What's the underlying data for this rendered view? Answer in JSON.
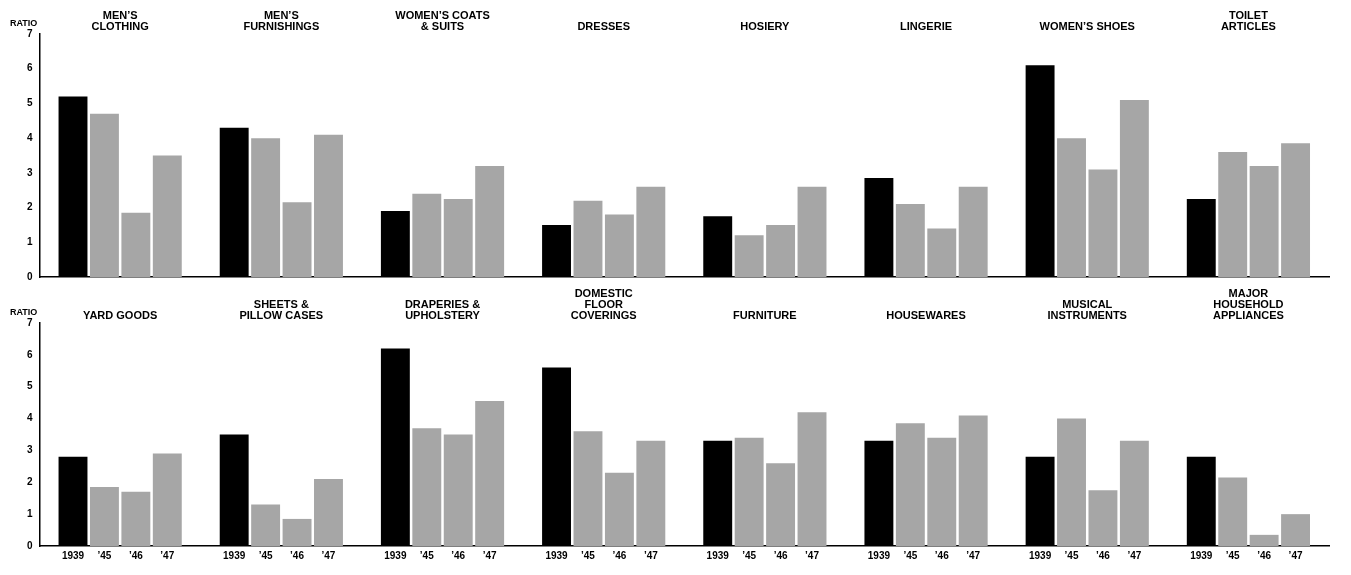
{
  "chart_data": [
    {
      "type": "bar",
      "ylabel": "RATIO",
      "categories": [
        "MEN’S CLOTHING",
        "MEN’S FURNISHINGS",
        "WOMEN’S COATS & SUITS",
        "DRESSES",
        "HOSIERY",
        "LINGERIE",
        "WOMEN’S SHOES",
        "TOILET ARTICLES"
      ],
      "ylim": [
        0,
        7
      ],
      "yticks": [
        0,
        1,
        2,
        3,
        4,
        5,
        6,
        7
      ],
      "grid": false,
      "series": [
        {
          "color": "#000000",
          "values": [
            5.2,
            4.3,
            1.9,
            1.5,
            1.75,
            2.85,
            6.1,
            2.25
          ]
        },
        {
          "color": "#a6a6a6",
          "values": [
            4.7,
            4.0,
            2.4,
            2.2,
            1.2,
            2.1,
            4.0,
            3.6
          ]
        },
        {
          "color": "#a6a6a6",
          "values": [
            1.85,
            2.15,
            2.25,
            1.8,
            1.5,
            1.4,
            3.1,
            3.2
          ]
        },
        {
          "color": "#a6a6a6",
          "values": [
            3.5,
            4.1,
            3.2,
            2.6,
            2.6,
            2.6,
            5.1,
            3.85
          ]
        }
      ]
    },
    {
      "type": "bar",
      "ylabel": "RATIO",
      "categories": [
        "YARD GOODS",
        "SHEETS & PILLOW CASES",
        "DRAPERIES & UPHOLSTERY",
        "DOMESTIC FLOOR COVERINGS",
        "FURNITURE",
        "HOUSEWARES",
        "MUSICAL INSTRUMENTS",
        "MAJOR HOUSEHOLD APPLIANCES"
      ],
      "ylim": [
        0,
        7
      ],
      "yticks": [
        0,
        1,
        2,
        3,
        4,
        5,
        6,
        7
      ],
      "grid": false,
      "series": [
        {
          "name": "1939",
          "color": "#000000",
          "values": [
            2.8,
            3.5,
            6.2,
            5.6,
            3.3,
            3.3,
            2.8,
            2.8
          ]
        },
        {
          "name": "’45",
          "color": "#a6a6a6",
          "values": [
            1.85,
            1.3,
            3.7,
            3.6,
            3.4,
            3.85,
            4.0,
            2.15
          ]
        },
        {
          "name": "’46",
          "color": "#a6a6a6",
          "values": [
            1.7,
            0.85,
            3.5,
            2.3,
            2.6,
            3.4,
            1.75,
            0.35
          ]
        },
        {
          "name": "’47",
          "color": "#a6a6a6",
          "values": [
            2.9,
            2.1,
            4.55,
            3.3,
            4.2,
            4.1,
            3.3,
            1.0
          ]
        }
      ]
    }
  ]
}
